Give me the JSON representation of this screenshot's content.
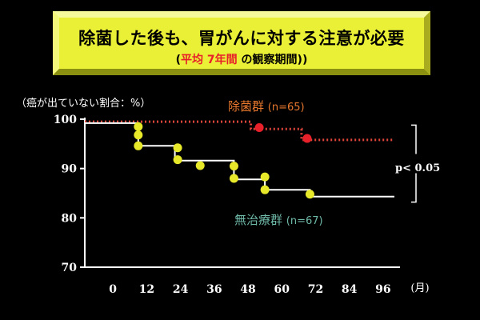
{
  "banner": {
    "title": "除菌した後も、胃がんに対する注意が必要",
    "subtitle_open": "(",
    "subtitle_highlight": "平均 7年間",
    "subtitle_rest": " の観察期間)"
  },
  "chart_data": {
    "type": "line",
    "ylabel": "（癌が出ていない割合：%）",
    "xlabel": "(月)",
    "x_ticks": [
      "0",
      "12",
      "24",
      "36",
      "48",
      "60",
      "72",
      "84",
      "96"
    ],
    "y_ticks": [
      "100",
      "90",
      "80",
      "70"
    ],
    "xlim": [
      -10,
      102
    ],
    "ylim": [
      70,
      100
    ],
    "series": [
      {
        "name": "除菌群",
        "n_label": "(n=65)",
        "color": "#e8202a",
        "line_color": "#e0453a",
        "line_style": "dotted",
        "steps": [
          [
            -10,
            99.5
          ],
          [
            49,
            99.5
          ],
          [
            49,
            98.0
          ],
          [
            67,
            98.0
          ],
          [
            67,
            95.8
          ],
          [
            100,
            95.8
          ]
        ],
        "censor_points": [
          [
            52,
            98.3
          ],
          [
            69,
            96.1
          ]
        ]
      },
      {
        "name": "無治療群",
        "n_label": "(n=67)",
        "color": "#e8e82a",
        "line_color": "#ffffff",
        "line_style": "solid",
        "steps": [
          [
            -10,
            99.2
          ],
          [
            9,
            99.2
          ],
          [
            9,
            94.6
          ],
          [
            22,
            94.6
          ],
          [
            22,
            91.6
          ],
          [
            43,
            91.6
          ],
          [
            43,
            87.8
          ],
          [
            54,
            87.8
          ],
          [
            54,
            85.7
          ],
          [
            70,
            85.7
          ],
          [
            70,
            84.3
          ],
          [
            100,
            84.3
          ]
        ],
        "censor_points": [
          [
            9,
            98.5
          ],
          [
            9,
            96.8
          ],
          [
            9,
            94.6
          ],
          [
            23,
            94.2
          ],
          [
            23,
            91.8
          ],
          [
            31,
            90.6
          ],
          [
            43,
            90.5
          ],
          [
            43,
            88.0
          ],
          [
            54,
            88.3
          ],
          [
            54,
            85.7
          ],
          [
            70,
            84.8
          ]
        ]
      }
    ],
    "annotation": "p< 0.05"
  }
}
